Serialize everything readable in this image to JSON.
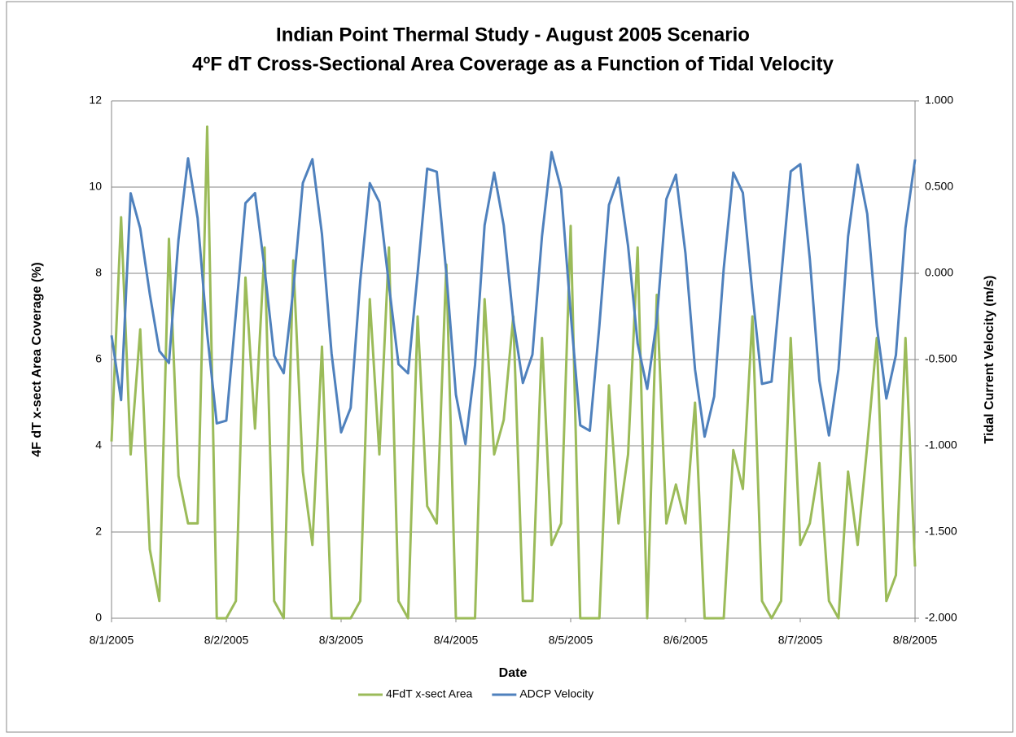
{
  "chart_data": {
    "type": "line",
    "title": [
      "Indian Point Thermal Study - August 2005 Scenario",
      "4ºF dT Cross-Sectional Area Coverage as a Function of  Tidal Velocity"
    ],
    "x_label": "Date",
    "y_label": "4F dT x-sect  Area Coverage (%)",
    "y2_label": "Tidal Current Velocity (m/s)",
    "x": [
      0,
      2,
      4,
      6,
      8,
      10,
      12,
      14,
      16,
      18,
      20,
      22,
      24,
      26,
      28,
      30,
      32,
      34,
      36,
      38,
      40,
      42,
      44,
      46,
      48,
      50,
      52,
      54,
      56,
      58,
      60,
      62,
      64,
      66,
      68,
      70,
      72,
      74,
      76,
      78,
      80,
      82,
      84,
      86,
      88,
      90,
      92,
      94,
      96,
      98,
      100,
      102,
      104,
      106,
      108,
      110,
      112,
      114,
      116,
      118,
      120,
      122,
      124,
      126,
      128,
      130,
      132,
      134,
      136,
      138,
      140,
      142,
      144,
      146,
      148,
      150,
      152,
      154,
      156,
      158,
      160,
      162,
      164,
      166,
      168
    ],
    "xlim": [
      0,
      168
    ],
    "xticks": [
      {
        "value": 0,
        "label": "8/1/2005"
      },
      {
        "value": 24,
        "label": "8/2/2005"
      },
      {
        "value": 48,
        "label": "8/3/2005"
      },
      {
        "value": 72,
        "label": "8/4/2005"
      },
      {
        "value": 96,
        "label": "8/5/2005"
      },
      {
        "value": 120,
        "label": "8/6/2005"
      },
      {
        "value": 144,
        "label": "8/7/2005"
      },
      {
        "value": 168,
        "label": "8/8/2005"
      }
    ],
    "ylim": [
      0,
      12
    ],
    "yticks": [
      0,
      2,
      4,
      6,
      8,
      10,
      12
    ],
    "y2lim": [
      -2,
      1
    ],
    "y2ticks": [
      {
        "value": -2,
        "label": "-2.000"
      },
      {
        "value": -1.5,
        "label": "-1.500"
      },
      {
        "value": -1,
        "label": "-1.000"
      },
      {
        "value": -0.5,
        "label": "-0.500"
      },
      {
        "value": 0,
        "label": "0.000"
      },
      {
        "value": 0.5,
        "label": "0.500"
      },
      {
        "value": 1,
        "label": "1.000"
      }
    ],
    "grid": true,
    "legend": "bottom",
    "series": [
      {
        "name": "4FdT x-sect Area",
        "color": "#9bbb59",
        "axis": "y",
        "values": [
          4.1,
          9.3,
          3.8,
          6.7,
          1.6,
          0.4,
          8.8,
          3.3,
          2.2,
          2.2,
          11.4,
          0,
          0,
          0.4,
          7.9,
          4.4,
          8.6,
          0.4,
          0,
          8.3,
          3.4,
          1.7,
          6.3,
          0,
          0,
          0,
          0.4,
          7.4,
          3.8,
          8.6,
          0.4,
          0,
          7.0,
          2.6,
          2.2,
          8.2,
          0,
          0,
          0,
          7.4,
          3.8,
          4.6,
          7.0,
          0.4,
          0.4,
          6.5,
          1.7,
          2.2,
          9.1,
          0,
          0,
          0,
          5.4,
          2.2,
          3.8,
          8.6,
          0,
          7.5,
          2.2,
          3.1,
          2.2,
          5.0,
          0,
          0,
          0,
          3.9,
          3.0,
          7.0,
          0.4,
          0,
          0.4,
          6.5,
          1.7,
          2.2,
          3.6,
          0.4,
          0,
          3.4,
          1.7,
          4.0,
          6.5,
          0.4,
          1.0,
          6.5,
          1.2
        ]
      },
      {
        "name": "ADCP Velocity",
        "color": "#4f81bd",
        "axis": "y2",
        "values": [
          -0.36,
          -0.735,
          0.464,
          0.26,
          -0.12,
          -0.45,
          -0.52,
          0.195,
          0.667,
          0.32,
          -0.35,
          -0.87,
          -0.854,
          -0.233,
          0.407,
          0.465,
          0.026,
          -0.478,
          -0.579,
          -0.095,
          0.524,
          0.662,
          0.226,
          -0.463,
          -0.922,
          -0.78,
          -0.043,
          0.523,
          0.413,
          -0.067,
          -0.527,
          -0.58,
          0.0,
          0.607,
          0.589,
          0.0,
          -0.703,
          -0.99,
          -0.532,
          0.279,
          0.584,
          0.278,
          -0.271,
          -0.636,
          -0.471,
          0.215,
          0.703,
          0.489,
          -0.234,
          -0.881,
          -0.913,
          -0.304,
          0.396,
          0.555,
          0.159,
          -0.407,
          -0.67,
          -0.272,
          0.43,
          0.572,
          0.115,
          -0.558,
          -0.947,
          -0.714,
          0.028,
          0.584,
          0.467,
          -0.116,
          -0.641,
          -0.628,
          -0.027,
          0.591,
          0.633,
          0.083,
          -0.622,
          -0.94,
          -0.555,
          0.214,
          0.63,
          0.345,
          -0.306,
          -0.726,
          -0.474,
          0.264,
          0.66
        ]
      }
    ]
  }
}
